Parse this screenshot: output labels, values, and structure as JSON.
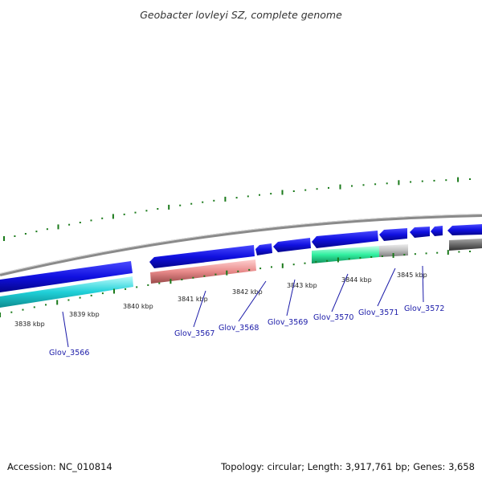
{
  "title": "Geobacter lovleyi SZ, complete genome",
  "footer": {
    "accession": "Accession: NC_010814",
    "summary": "Topology: circular; Length: 3,917,761 bp; Genes: 3,658"
  },
  "ticks": [
    "3838 kbp",
    "3839 kbp",
    "3840 kbp",
    "3841 kbp",
    "3842 kbp",
    "3843 kbp",
    "3844 kbp",
    "3845 kbp"
  ],
  "genes": [
    "Glov_3566",
    "Glov_3567",
    "Glov_3568",
    "Glov_3569",
    "Glov_3570",
    "Glov_3571",
    "Glov_3572"
  ],
  "colors": {
    "backbone": "#8a8a8a",
    "forward_gene": "#1010e0",
    "cds_cyan": "#20d0d8",
    "cds_pink": "#e88a8a",
    "cds_green": "#30f0a0",
    "cds_gray": "#bdbdbd",
    "dark_gray": "#6a6a6a",
    "tick_green": "#1a7a1a",
    "label_blue": "#1a1aa8"
  }
}
